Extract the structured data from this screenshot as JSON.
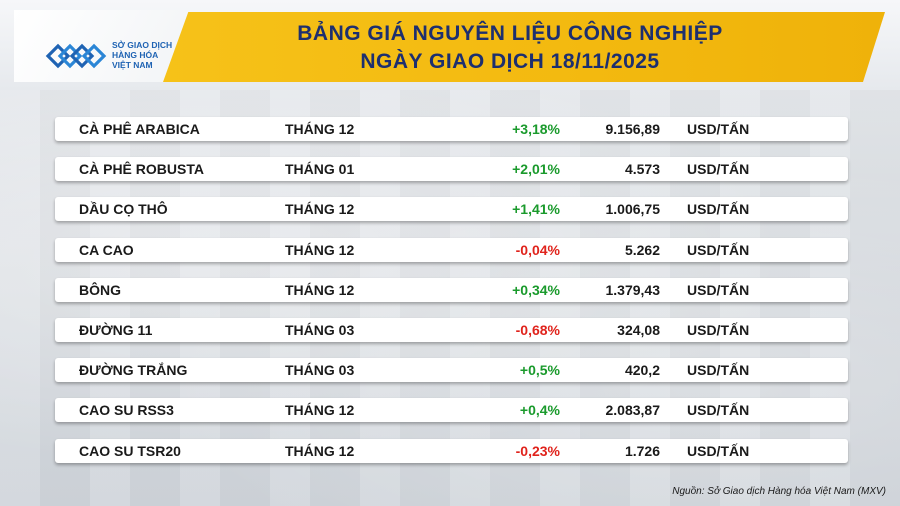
{
  "logo": {
    "line1": "SỞ GIAO DỊCH",
    "line2": "HÀNG HÓA",
    "line3": "VIỆT NAM"
  },
  "title": {
    "line1": "BẢNG GIÁ NGUYÊN LIỆU CÔNG NGHIỆP",
    "line2": "NGÀY GIAO DỊCH 18/11/2025"
  },
  "colors": {
    "positive": "#1a9a2c",
    "negative": "#e0231c",
    "title": "#1d2f6f",
    "accent_band": "#f3b90f"
  },
  "rows": [
    {
      "name": "CÀ PHÊ ARABICA",
      "month": "THÁNG 12",
      "change": "+3,18%",
      "direction": "up",
      "price": "9.156,89",
      "unit": "USD/TẤN"
    },
    {
      "name": "CÀ PHÊ ROBUSTA",
      "month": "THÁNG 01",
      "change": "+2,01%",
      "direction": "up",
      "price": "4.573",
      "unit": "USD/TẤN"
    },
    {
      "name": "DẦU CỌ THÔ",
      "month": "THÁNG 12",
      "change": "+1,41%",
      "direction": "up",
      "price": "1.006,75",
      "unit": "USD/TẤN"
    },
    {
      "name": "CA CAO",
      "month": "THÁNG 12",
      "change": "-0,04%",
      "direction": "down",
      "price": "5.262",
      "unit": "USD/TẤN"
    },
    {
      "name": "BÔNG",
      "month": "THÁNG 12",
      "change": "+0,34%",
      "direction": "up",
      "price": "1.379,43",
      "unit": "USD/TẤN"
    },
    {
      "name": "ĐƯỜNG 11",
      "month": "THÁNG 03",
      "change": "-0,68%",
      "direction": "down",
      "price": "324,08",
      "unit": "USD/TẤN"
    },
    {
      "name": "ĐƯỜNG TRẮNG",
      "month": "THÁNG 03",
      "change": "+0,5%",
      "direction": "up",
      "price": "420,2",
      "unit": "USD/TẤN"
    },
    {
      "name": "CAO SU RSS3",
      "month": "THÁNG 12",
      "change": "+0,4%",
      "direction": "up",
      "price": "2.083,87",
      "unit": "USD/TẤN"
    },
    {
      "name": "CAO SU TSR20",
      "month": "THÁNG 12",
      "change": "-0,23%",
      "direction": "down",
      "price": "1.726",
      "unit": "USD/TẤN"
    }
  ],
  "source": "Nguồn: Sở Giao dịch Hàng hóa Việt Nam (MXV)"
}
